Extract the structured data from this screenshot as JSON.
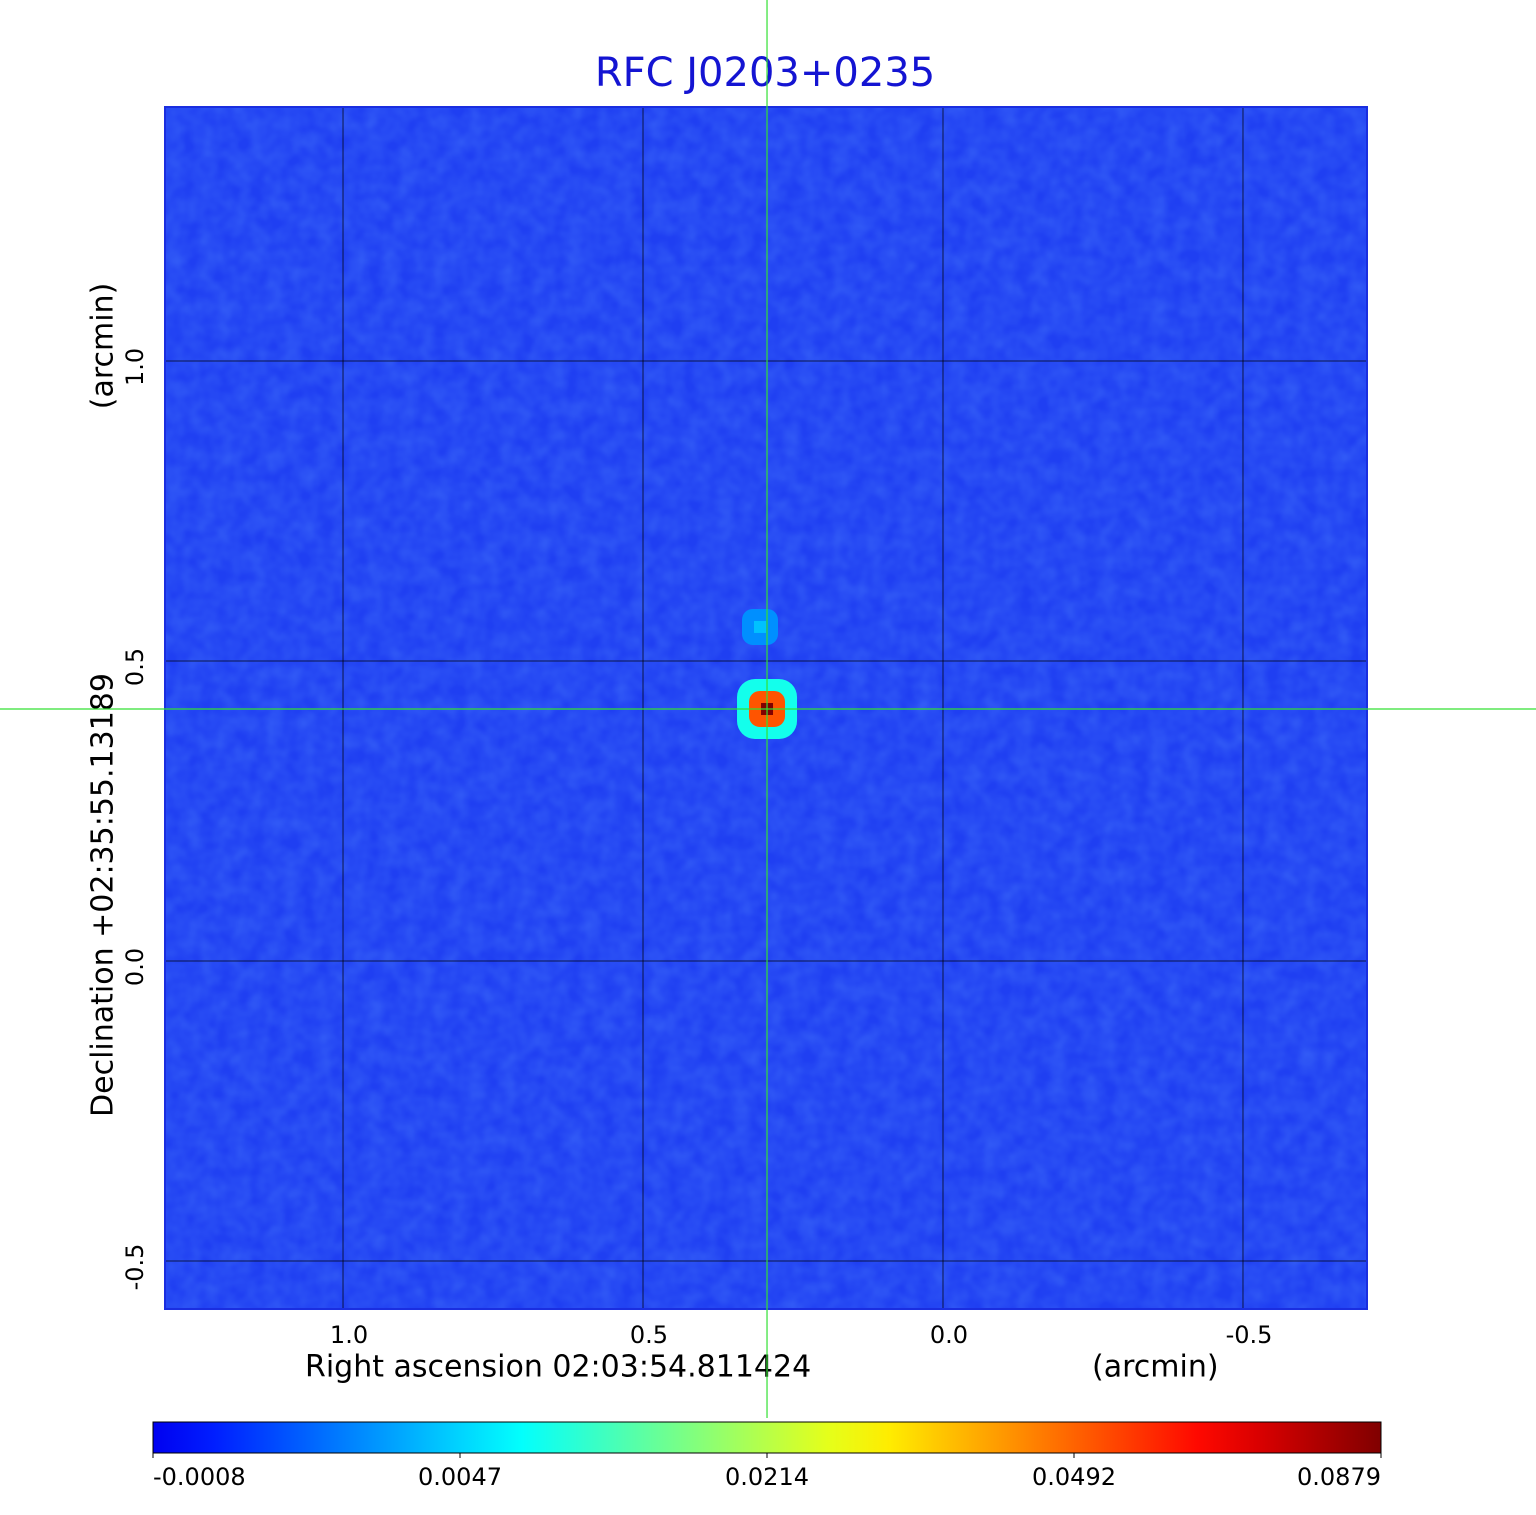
{
  "chart_data": {
    "type": "image",
    "title": "RFC J0203+0235",
    "x_label": "Right ascension  02:03:54.811424",
    "x_unit": "(arcmin)",
    "y_label": "Declination  +02:35:55.13189",
    "y_unit": "(arcmin)",
    "xlim": [
      1.2967,
      -0.7067
    ],
    "ylim": [
      -0.58,
      1.4233
    ],
    "xticks": [
      {
        "value": 1.0,
        "label": "1.0"
      },
      0.5,
      {
        "value": 0.0,
        "label": "0.0"
      },
      -0.5
    ],
    "yticks": [
      -0.5,
      {
        "value": 0.0,
        "label": "0.0"
      },
      0.5,
      {
        "value": 1.0,
        "label": "1.0"
      }
    ],
    "grid": true,
    "background_color": "#1f3ff2",
    "colormap": "jet",
    "colorbar_ticks": [
      -0.0008,
      0.0047,
      0.0214,
      0.0492,
      0.0879
    ],
    "components": {
      "x": [
        0.2933,
        0.305
      ],
      "y": [
        0.42,
        0.5567
      ],
      "peak": [
        0.0879,
        0.009
      ]
    },
    "crosshair": {
      "x": 0.2933,
      "y": 0.42,
      "color": "#33e033"
    }
  }
}
